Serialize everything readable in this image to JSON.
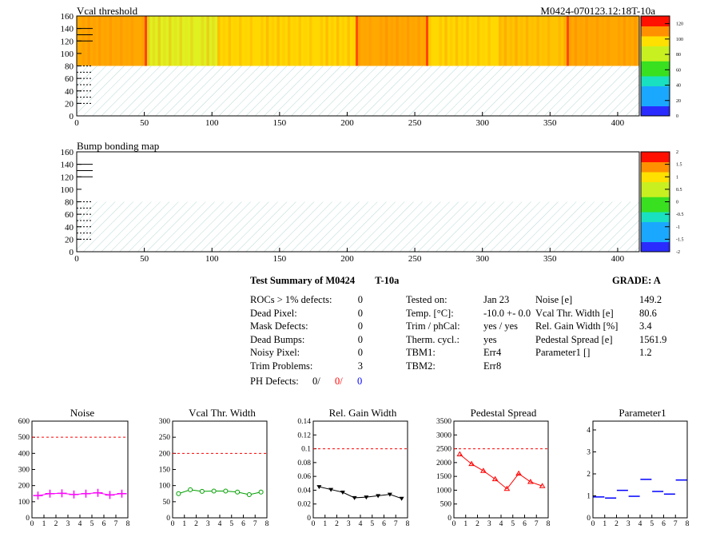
{
  "maps": [
    {
      "title": "Vcal threshold",
      "id_label": "M0424-070123.12:18T-10a",
      "x_ticks": [
        "0",
        "50",
        "100",
        "150",
        "200",
        "250",
        "300",
        "350",
        "400"
      ],
      "y_ticks": [
        "0",
        "20",
        "40",
        "60",
        "80",
        "100",
        "120",
        "140",
        "160"
      ],
      "x_range": [
        0,
        416
      ],
      "y_range": [
        0,
        160
      ],
      "filled_rows": [
        80,
        160
      ],
      "palette_ticks": [
        "0",
        "20",
        "40",
        "60",
        "80",
        "100",
        "120"
      ],
      "palette_range": [
        0,
        130
      ],
      "column_bands": [
        {
          "x": [
            0,
            52
          ],
          "level": "orange"
        },
        {
          "x": [
            52,
            104
          ],
          "level": "yellow-green"
        },
        {
          "x": [
            104,
            156
          ],
          "level": "yellow"
        },
        {
          "x": [
            156,
            208
          ],
          "level": "yellow"
        },
        {
          "x": [
            208,
            260
          ],
          "level": "orange"
        },
        {
          "x": [
            260,
            312
          ],
          "level": "yellow"
        },
        {
          "x": [
            312,
            364
          ],
          "level": "yellow-orange"
        },
        {
          "x": [
            364,
            416
          ],
          "level": "orange"
        }
      ]
    },
    {
      "title": "Bump bonding map",
      "x_ticks": [
        "0",
        "50",
        "100",
        "150",
        "200",
        "250",
        "300",
        "350",
        "400"
      ],
      "y_ticks": [
        "0",
        "20",
        "40",
        "60",
        "80",
        "100",
        "120",
        "140",
        "160"
      ],
      "x_range": [
        0,
        416
      ],
      "y_range": [
        0,
        160
      ],
      "palette_ticks": [
        "-2",
        "-1.5",
        "-1",
        "-0.5",
        "0",
        "0.5",
        "1",
        "1.5",
        "2"
      ],
      "palette_range": [
        -2,
        2
      ]
    }
  ],
  "summary": {
    "title": "Test Summary of M0424",
    "temp_label": "T-10a",
    "grade": "GRADE:  A",
    "left": [
      {
        "label": "ROCs > 1% defects:",
        "value": "0"
      },
      {
        "label": "Dead Pixel:",
        "value": "0"
      },
      {
        "label": "Mask Defects:",
        "value": "0"
      },
      {
        "label": "Dead Bumps:",
        "value": "0"
      },
      {
        "label": "Noisy Pixel:",
        "value": "0"
      },
      {
        "label": "Trim Problems:",
        "value": "3"
      }
    ],
    "ph_defects": {
      "label": "PH Defects:",
      "v1": "0/",
      "v2": "0/",
      "v3": "0",
      "c1": "#000000",
      "c2": "#ff0000",
      "c3": "#0000ff"
    },
    "middle": [
      {
        "label": "Tested on:",
        "value": "Jan 23"
      },
      {
        "label": "Temp. [°C]:",
        "value": "-10.0 +- 0.0"
      },
      {
        "label": "Trim / phCal:",
        "value": "yes / yes"
      },
      {
        "label": "Therm. cycl.:",
        "value": "yes"
      },
      {
        "label": "TBM1:",
        "value": "Err4"
      },
      {
        "label": "TBM2:",
        "value": "Err8"
      }
    ],
    "right": [
      {
        "label": "Noise [e]",
        "value": "149.2"
      },
      {
        "label": "Vcal Thr. Width [e]",
        "value": "80.6"
      },
      {
        "label": "Rel. Gain Width [%]",
        "value": "3.4"
      },
      {
        "label": "Pedestal Spread [e]",
        "value": "1561.9"
      },
      {
        "label": "Parameter1 []",
        "value": "1.2"
      }
    ]
  },
  "chart_data": [
    {
      "type": "line",
      "title": "Noise",
      "color": "#ff00ff",
      "marker": "cross",
      "x": [
        0.5,
        1.5,
        2.5,
        3.5,
        4.5,
        5.5,
        6.5,
        7.5
      ],
      "values": [
        138,
        150,
        152,
        145,
        150,
        155,
        142,
        150
      ],
      "ylim": [
        0,
        600
      ],
      "xlim": [
        0,
        8
      ],
      "threshold": 500,
      "yticks": [
        "0",
        "100",
        "200",
        "300",
        "400",
        "500",
        "600"
      ],
      "xticks": [
        "0",
        "1",
        "2",
        "3",
        "4",
        "5",
        "6",
        "7",
        "8"
      ]
    },
    {
      "type": "line",
      "title": "Vcal Thr. Width",
      "color": "#00a000",
      "marker": "circle",
      "x": [
        0.5,
        1.5,
        2.5,
        3.5,
        4.5,
        5.5,
        6.5,
        7.5
      ],
      "values": [
        75,
        87,
        82,
        83,
        83,
        80,
        72,
        80
      ],
      "ylim": [
        0,
        300
      ],
      "xlim": [
        0,
        8
      ],
      "threshold": 200,
      "yticks": [
        "0",
        "50",
        "100",
        "150",
        "200",
        "250",
        "300"
      ],
      "xticks": [
        "0",
        "1",
        "2",
        "3",
        "4",
        "5",
        "6",
        "7",
        "8"
      ]
    },
    {
      "type": "line",
      "title": "Rel. Gain Width",
      "color": "#000000",
      "marker": "triangle-down",
      "x": [
        0.5,
        1.5,
        2.5,
        3.5,
        4.5,
        5.5,
        6.5,
        7.5
      ],
      "values": [
        0.045,
        0.041,
        0.037,
        0.029,
        0.03,
        0.032,
        0.034,
        0.028
      ],
      "ylim": [
        0,
        0.14
      ],
      "xlim": [
        0,
        8
      ],
      "threshold": 0.1,
      "yticks": [
        "0",
        "0.02",
        "0.04",
        "0.06",
        "0.08",
        "0.1",
        "0.12",
        "0.14"
      ],
      "xticks": [
        "0",
        "1",
        "2",
        "3",
        "4",
        "5",
        "6",
        "7",
        "8"
      ]
    },
    {
      "type": "line",
      "title": "Pedestal Spread",
      "color": "#ff0000",
      "marker": "triangle-up",
      "x": [
        0.5,
        1.5,
        2.5,
        3.5,
        4.5,
        5.5,
        6.5,
        7.5
      ],
      "values": [
        2300,
        1950,
        1700,
        1400,
        1050,
        1600,
        1300,
        1150
      ],
      "ylim": [
        0,
        3500
      ],
      "xlim": [
        0,
        8
      ],
      "threshold": 2500,
      "yticks": [
        "0",
        "500",
        "1000",
        "1500",
        "2000",
        "2500",
        "3000",
        "3500"
      ],
      "xticks": [
        "0",
        "1",
        "2",
        "3",
        "4",
        "5",
        "6",
        "7",
        "8"
      ]
    },
    {
      "type": "scatter",
      "title": "Parameter1",
      "color": "#0000ff",
      "marker": "hbar",
      "x": [
        0.5,
        1.5,
        2.5,
        3.5,
        4.5,
        5.5,
        6.5,
        7.5
      ],
      "values": [
        0.95,
        0.9,
        1.25,
        0.98,
        1.75,
        1.2,
        1.08,
        1.72
      ],
      "ylim": [
        0,
        4.4
      ],
      "xlim": [
        0,
        8
      ],
      "threshold": null,
      "yticks": [
        "0",
        "1",
        "2",
        "3",
        "4"
      ],
      "xticks": [
        "0",
        "1",
        "2",
        "3",
        "4",
        "5",
        "6",
        "7",
        "8"
      ]
    }
  ]
}
